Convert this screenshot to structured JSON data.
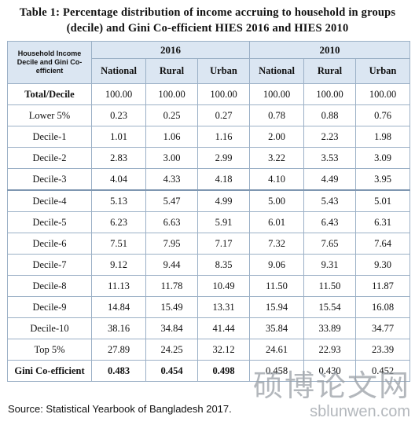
{
  "title": {
    "line1": "Table 1: Percentage distribution of income accruing to household in groups",
    "line2": "(decile) and Gini Co-efficient HIES 2016 and HIES 2010"
  },
  "table": {
    "corner_label": "Household Income Decile and Gini Co-efficient",
    "years": [
      "2016",
      "2010"
    ],
    "subheaders": [
      "National",
      "Rural",
      "Urban",
      "National",
      "Rural",
      "Urban"
    ],
    "rows": [
      {
        "label": "Total/Decile",
        "values": [
          "100.00",
          "100.00",
          "100.00",
          "100.00",
          "100.00",
          "100.00"
        ]
      },
      {
        "label": "Lower 5%",
        "values": [
          "0.23",
          "0.25",
          "0.27",
          "0.78",
          "0.88",
          "0.76"
        ]
      },
      {
        "label": "Decile-1",
        "values": [
          "1.01",
          "1.06",
          "1.16",
          "2.00",
          "2.23",
          "1.98"
        ]
      },
      {
        "label": "Decile-2",
        "values": [
          "2.83",
          "3.00",
          "2.99",
          "3.22",
          "3.53",
          "3.09"
        ]
      },
      {
        "label": "Decile-3",
        "values": [
          "4.04",
          "4.33",
          "4.18",
          "4.10",
          "4.49",
          "3.95"
        ]
      },
      {
        "label": "Decile-4",
        "values": [
          "5.13",
          "5.47",
          "4.99",
          "5.00",
          "5.43",
          "5.01"
        ]
      },
      {
        "label": "Decile-5",
        "values": [
          "6.23",
          "6.63",
          "5.91",
          "6.01",
          "6.43",
          "6.31"
        ]
      },
      {
        "label": "Decile-6",
        "values": [
          "7.51",
          "7.95",
          "7.17",
          "7.32",
          "7.65",
          "7.64"
        ]
      },
      {
        "label": "Decile-7",
        "values": [
          "9.12",
          "9.44",
          "8.35",
          "9.06",
          "9.31",
          "9.30"
        ]
      },
      {
        "label": "Decile-8",
        "values": [
          "11.13",
          "11.78",
          "10.49",
          "11.50",
          "11.50",
          "11.87"
        ]
      },
      {
        "label": "Decile-9",
        "values": [
          "14.84",
          "15.49",
          "13.31",
          "15.94",
          "15.54",
          "16.08"
        ]
      },
      {
        "label": "Decile-10",
        "values": [
          "38.16",
          "34.84",
          "41.44",
          "35.84",
          "33.89",
          "34.77"
        ]
      },
      {
        "label": "Top 5%",
        "values": [
          "27.89",
          "24.25",
          "32.12",
          "24.61",
          "22.93",
          "23.39"
        ]
      },
      {
        "label": "Gini Co-efficient",
        "values": [
          "0.483",
          "0.454",
          "0.498",
          "0.458",
          "0.430",
          "0.452"
        ]
      }
    ]
  },
  "source": "Source: Statistical Yearbook of Bangladesh 2017.",
  "watermark": {
    "cn": "硕博论文网",
    "en": "sblunwen.com"
  }
}
